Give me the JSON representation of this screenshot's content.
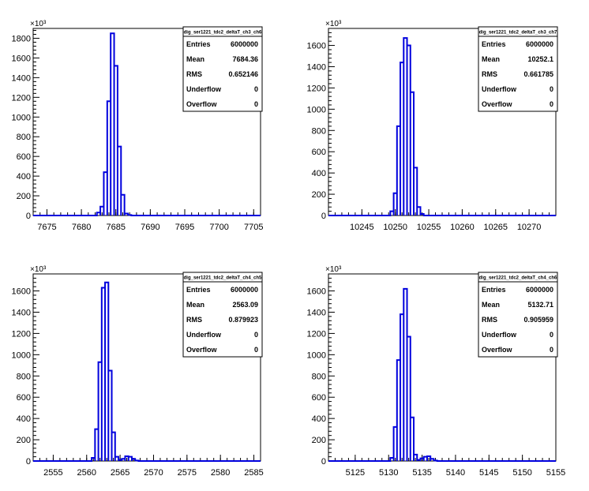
{
  "chart_data": [
    {
      "type": "histogram",
      "title": "dig_ser1221_tdc2_deltaT_ch3_ch6",
      "x_range": [
        7673,
        7706
      ],
      "x_ticks": [
        7675,
        7680,
        7685,
        7690,
        7695,
        7700,
        7705
      ],
      "y_range": [
        0,
        1900
      ],
      "y_ticks": [
        0,
        200,
        400,
        600,
        800,
        1000,
        1200,
        1400,
        1600,
        1800
      ],
      "y_multiplier": "×10³",
      "bins": [
        {
          "x": 7682.5,
          "y": 30
        },
        {
          "x": 7683,
          "y": 90
        },
        {
          "x": 7683.5,
          "y": 440
        },
        {
          "x": 7684,
          "y": 1160
        },
        {
          "x": 7684.5,
          "y": 1850
        },
        {
          "x": 7685,
          "y": 1520
        },
        {
          "x": 7685.5,
          "y": 700
        },
        {
          "x": 7686,
          "y": 210
        },
        {
          "x": 7686.5,
          "y": 20
        },
        {
          "x": 7687,
          "y": 5
        }
      ],
      "stats": [
        {
          "label": "Entries",
          "value": "6000000"
        },
        {
          "label": "Mean",
          "value": "7684.36"
        },
        {
          "label": "RMS",
          "value": "0.652146"
        },
        {
          "label": "Underflow",
          "value": "0"
        },
        {
          "label": "Overflow",
          "value": "0"
        }
      ]
    },
    {
      "type": "histogram",
      "title": "dig_ser1221_tdc2_deltaT_ch3_ch7",
      "x_range": [
        10240,
        10274
      ],
      "x_ticks": [
        10245,
        10250,
        10255,
        10260,
        10265,
        10270
      ],
      "y_range": [
        0,
        1760
      ],
      "y_ticks": [
        0,
        200,
        400,
        600,
        800,
        1000,
        1200,
        1400,
        1600
      ],
      "y_multiplier": "×10³",
      "bins": [
        {
          "x": 10249.5,
          "y": 40
        },
        {
          "x": 10250,
          "y": 210
        },
        {
          "x": 10250.5,
          "y": 840
        },
        {
          "x": 10251,
          "y": 1440
        },
        {
          "x": 10251.5,
          "y": 1670
        },
        {
          "x": 10252,
          "y": 1600
        },
        {
          "x": 10252.5,
          "y": 1160
        },
        {
          "x": 10253,
          "y": 450
        },
        {
          "x": 10253.5,
          "y": 80
        },
        {
          "x": 10254,
          "y": 15
        }
      ],
      "stats": [
        {
          "label": "Entries",
          "value": "6000000"
        },
        {
          "label": "Mean",
          "value": "10252.1"
        },
        {
          "label": "RMS",
          "value": "0.661785"
        },
        {
          "label": "Underflow",
          "value": "0"
        },
        {
          "label": "Overflow",
          "value": "0"
        }
      ]
    },
    {
      "type": "histogram",
      "title": "dig_ser1221_tdc2_deltaT_ch4_ch5",
      "x_range": [
        2552,
        2586
      ],
      "x_ticks": [
        2555,
        2560,
        2565,
        2570,
        2575,
        2580,
        2585
      ],
      "y_range": [
        0,
        1760
      ],
      "y_ticks": [
        0,
        200,
        400,
        600,
        800,
        1000,
        1200,
        1400,
        1600
      ],
      "y_multiplier": "×10³",
      "bins": [
        {
          "x": 2561,
          "y": 30
        },
        {
          "x": 2561.5,
          "y": 300
        },
        {
          "x": 2562,
          "y": 930
        },
        {
          "x": 2562.5,
          "y": 1630
        },
        {
          "x": 2563,
          "y": 1680
        },
        {
          "x": 2563.5,
          "y": 850
        },
        {
          "x": 2564,
          "y": 270
        },
        {
          "x": 2564.5,
          "y": 40
        },
        {
          "x": 2565,
          "y": 10
        },
        {
          "x": 2565.5,
          "y": 20
        },
        {
          "x": 2566,
          "y": 45
        },
        {
          "x": 2566.5,
          "y": 40
        },
        {
          "x": 2567,
          "y": 20
        },
        {
          "x": 2567.5,
          "y": 5
        }
      ],
      "stats": [
        {
          "label": "Entries",
          "value": "6000000"
        },
        {
          "label": "Mean",
          "value": "2563.09"
        },
        {
          "label": "RMS",
          "value": "0.879923"
        },
        {
          "label": "Underflow",
          "value": "0"
        },
        {
          "label": "Overflow",
          "value": "0"
        }
      ]
    },
    {
      "type": "histogram",
      "title": "dig_ser1221_tdc2_deltaT_ch4_ch6",
      "x_range": [
        5121,
        5155
      ],
      "x_ticks": [
        5125,
        5130,
        5135,
        5140,
        5145,
        5150,
        5155
      ],
      "y_range": [
        0,
        1760
      ],
      "y_ticks": [
        0,
        200,
        400,
        600,
        800,
        1000,
        1200,
        1400,
        1600
      ],
      "y_multiplier": "×10³",
      "bins": [
        {
          "x": 5130.5,
          "y": 30
        },
        {
          "x": 5131,
          "y": 320
        },
        {
          "x": 5131.5,
          "y": 950
        },
        {
          "x": 5132,
          "y": 1380
        },
        {
          "x": 5132.5,
          "y": 1620
        },
        {
          "x": 5133,
          "y": 1170
        },
        {
          "x": 5133.5,
          "y": 410
        },
        {
          "x": 5134,
          "y": 60
        },
        {
          "x": 5134.5,
          "y": 10
        },
        {
          "x": 5135,
          "y": 25
        },
        {
          "x": 5135.5,
          "y": 40
        },
        {
          "x": 5136,
          "y": 45
        },
        {
          "x": 5136.5,
          "y": 20
        },
        {
          "x": 5137,
          "y": 5
        }
      ],
      "stats": [
        {
          "label": "Entries",
          "value": "6000000"
        },
        {
          "label": "Mean",
          "value": "5132.71"
        },
        {
          "label": "RMS",
          "value": "0.905959"
        },
        {
          "label": "Underflow",
          "value": "0"
        },
        {
          "label": "Overflow",
          "value": "0"
        }
      ]
    }
  ],
  "colors": {
    "line": "#0000dd",
    "axis": "#000000",
    "background": "#ffffff"
  }
}
